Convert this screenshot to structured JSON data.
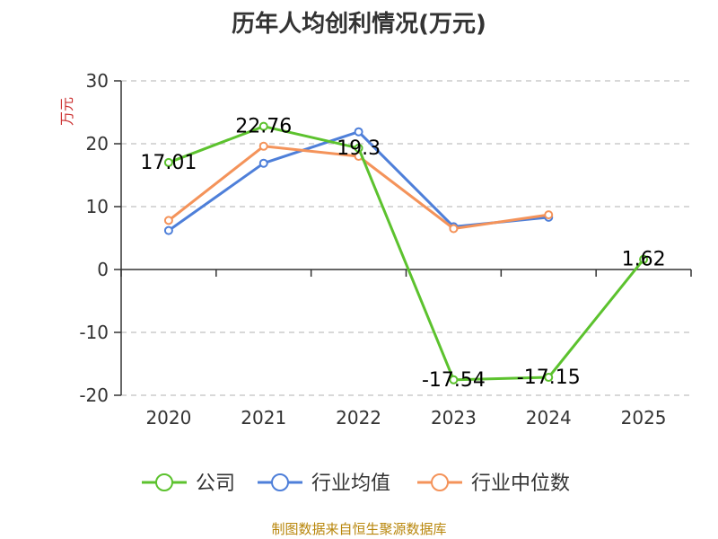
{
  "chart_data": {
    "type": "line",
    "title": "历年人均创利情况(万元)",
    "ylabel": "万元",
    "categories": [
      "2020",
      "2021",
      "2022",
      "2023",
      "2024",
      "2025"
    ],
    "ylim": [
      -20,
      30
    ],
    "yticks": [
      30,
      20,
      10,
      0,
      -10,
      -20
    ],
    "grid": true,
    "legend_position": "bottom",
    "series": [
      {
        "name": "公司",
        "color": "#5cc22e",
        "values": [
          17.01,
          22.76,
          19.3,
          -17.54,
          -17.15,
          1.62
        ],
        "labels": [
          "17.01",
          "22.76",
          "19.3",
          "-17.54",
          "-17.15",
          "1.62"
        ]
      },
      {
        "name": "行业均值",
        "color": "#4e7fd9",
        "values": [
          6.2,
          16.9,
          21.9,
          6.8,
          8.3,
          null
        ]
      },
      {
        "name": "行业中位数",
        "color": "#f4935a",
        "values": [
          7.8,
          19.6,
          18.0,
          6.5,
          8.7,
          null
        ]
      }
    ]
  },
  "source": "制图数据来自恒生聚源数据库"
}
